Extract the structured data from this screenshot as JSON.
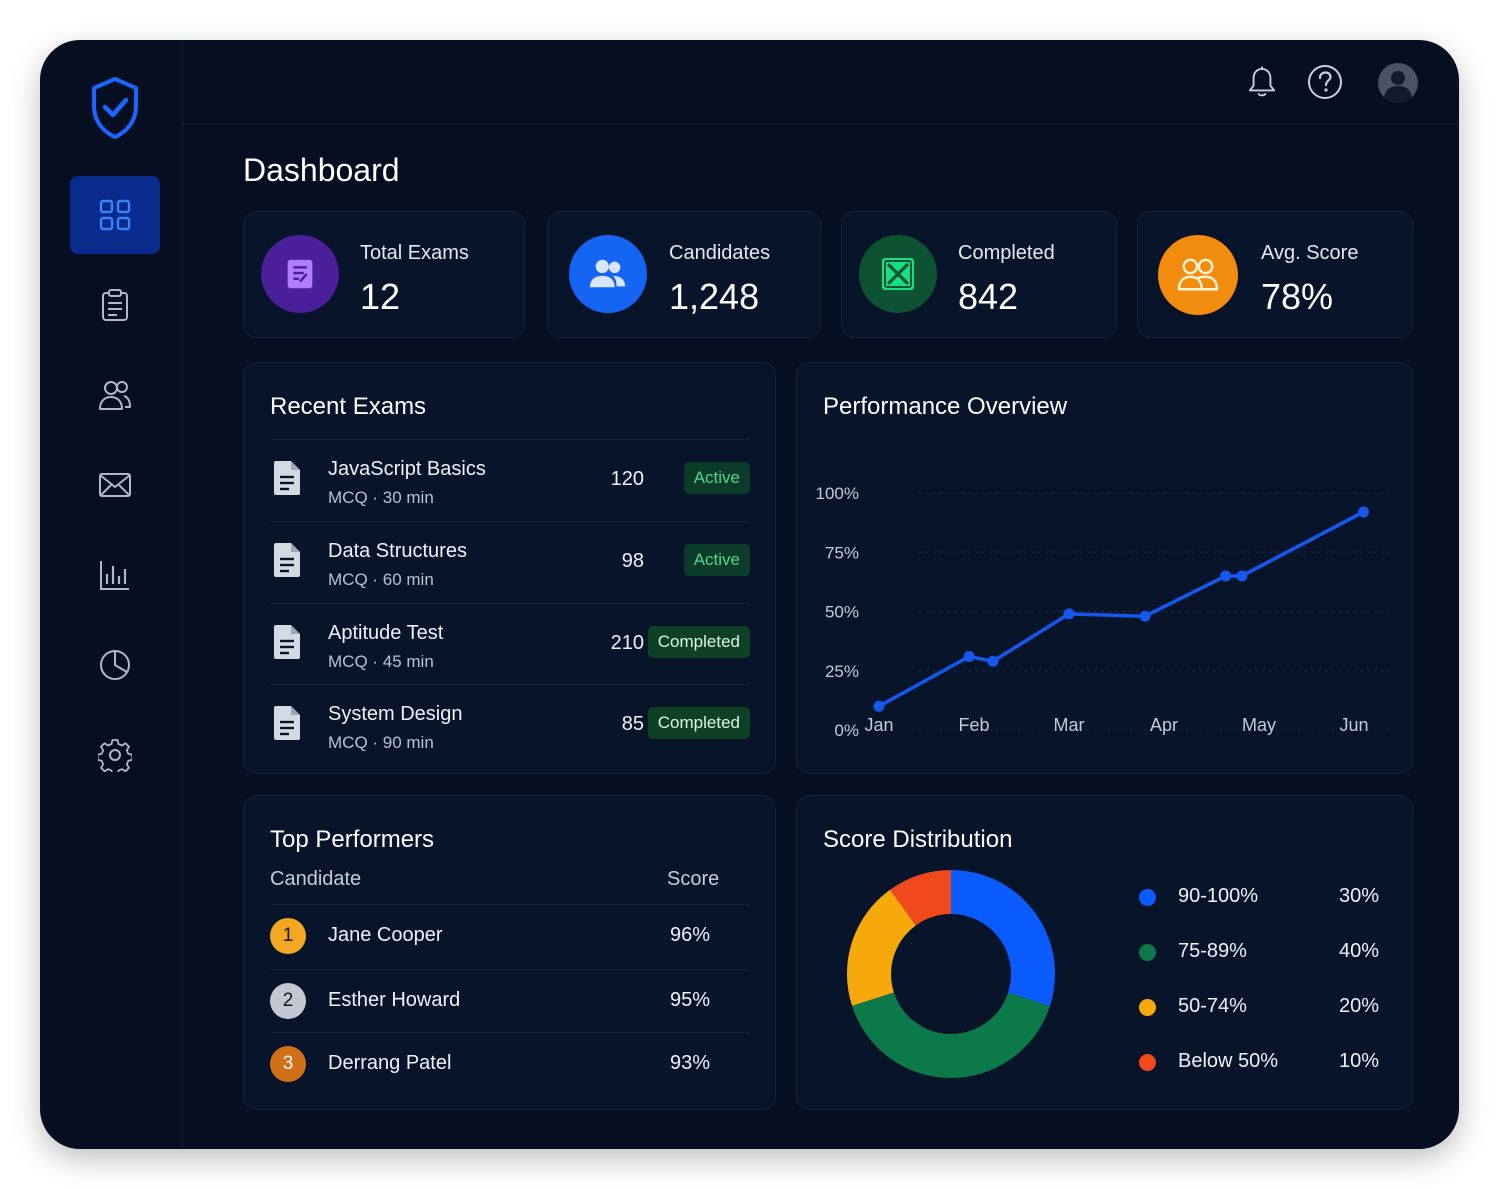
{
  "nav": {
    "items": [
      {
        "name": "dashboard",
        "icon": "grid-icon",
        "active": true
      },
      {
        "name": "exams",
        "icon": "clipboard-icon"
      },
      {
        "name": "candidates",
        "icon": "users-icon"
      },
      {
        "name": "messages",
        "icon": "mail-icon"
      },
      {
        "name": "reports",
        "icon": "bar-chart-icon"
      },
      {
        "name": "analytics",
        "icon": "pie-chart-icon"
      },
      {
        "name": "settings",
        "icon": "gear-icon"
      }
    ],
    "logo_icon": "shield-check-icon"
  },
  "topbar": {
    "icons": [
      "bell-icon",
      "help-icon",
      "avatar"
    ]
  },
  "page": {
    "title": "Dashboard"
  },
  "stats": [
    {
      "label": "Total Exams",
      "value": "12",
      "icon": "exam-icon",
      "color": "#5b2aa8"
    },
    {
      "label": "Candidates",
      "value": "1,248",
      "icon": "users-icon",
      "color": "#1565f5"
    },
    {
      "label": "Completed",
      "value": "842",
      "icon": "x-box-icon",
      "color": "#0d5e38"
    },
    {
      "label": "Avg. Score",
      "value": "78%",
      "icon": "group-icon",
      "color": "#f28c0f"
    }
  ],
  "recent_exams": {
    "title": "Recent Exams",
    "rows": [
      {
        "name": "JavaScript Basics",
        "meta": "MCQ · 30 min",
        "count": "120",
        "status": "Active"
      },
      {
        "name": "Data Structures",
        "meta": "MCQ · 60 min",
        "count": "98",
        "status": "Active"
      },
      {
        "name": "Aptitude Test",
        "meta": "MCQ · 45 min",
        "count": "210",
        "status": "Completed"
      },
      {
        "name": "System Design",
        "meta": "MCQ · 90 min",
        "count": "85",
        "status": "Completed"
      }
    ]
  },
  "performance": {
    "title": "Performance Overview"
  },
  "top_performers": {
    "title": "Top Performers",
    "col_candidate": "Candidate",
    "col_score": "Score",
    "rows": [
      {
        "rank": "1",
        "name": "Jane Cooper",
        "score": "96%",
        "color": "#f5a623"
      },
      {
        "rank": "2",
        "name": "Esther Howard",
        "score": "95%",
        "color": "#c3c8d2"
      },
      {
        "rank": "3",
        "name": "Derrang Patel",
        "score": "93%",
        "color": "#d0711a"
      }
    ]
  },
  "score_distribution": {
    "title": "Score Distribution",
    "segments": [
      {
        "label": "90-100%",
        "value": "30%",
        "pct": 30,
        "color": "#0a5cff"
      },
      {
        "label": "75-89%",
        "value": "40%",
        "pct": 40,
        "color": "#0b7a48"
      },
      {
        "label": "50-74%",
        "value": "20%",
        "pct": 20,
        "color": "#f7a90c"
      },
      {
        "label": "Below 50%",
        "value": "10%",
        "pct": 10,
        "color": "#f04a1c"
      }
    ]
  },
  "chart_data": [
    {
      "type": "line",
      "title": "Performance Overview",
      "categories": [
        "Jan",
        "Feb",
        "Mar",
        "Apr",
        "May",
        "Jun"
      ],
      "x": [
        0,
        0.95,
        1.2,
        2.0,
        2.8,
        3.65,
        3.82,
        5.1
      ],
      "series": [
        {
          "values": [
            10,
            31,
            29,
            49,
            48,
            65,
            65,
            92
          ],
          "color": "#1558f0"
        }
      ],
      "yticks": [
        "0%",
        "25%",
        "50%",
        "75%",
        "100%"
      ],
      "ylim": [
        0,
        100
      ],
      "grid": true
    },
    {
      "type": "pie",
      "title": "Score Distribution",
      "labels": [
        "90-100%",
        "75-89%",
        "50-74%",
        "Below 50%"
      ],
      "values": [
        30,
        40,
        20,
        10
      ],
      "legend": "right"
    }
  ]
}
